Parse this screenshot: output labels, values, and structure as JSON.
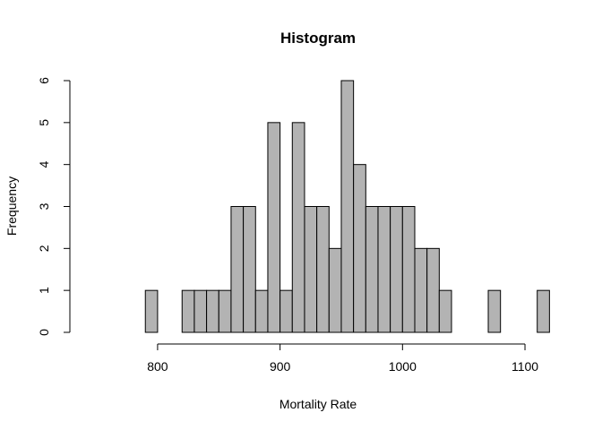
{
  "chart_data": {
    "type": "bar",
    "title": "Histogram",
    "xlabel": "Mortality Rate",
    "ylabel": "Frequency",
    "bin_width": 10,
    "bin_start": 790,
    "values": [
      1,
      0,
      0,
      1,
      1,
      1,
      1,
      3,
      3,
      1,
      5,
      1,
      5,
      3,
      3,
      2,
      6,
      4,
      3,
      3,
      3,
      3,
      2,
      2,
      1,
      0,
      0,
      0,
      1,
      0,
      0,
      0,
      1
    ],
    "xlim": [
      731.3,
      1119
    ],
    "ylim": [
      0,
      6
    ],
    "xticks": [
      800,
      900,
      1000,
      1100
    ],
    "yticks": [
      0,
      1,
      2,
      3,
      4,
      5,
      6
    ],
    "bar_color": "#b3b3b3",
    "grid": false
  }
}
